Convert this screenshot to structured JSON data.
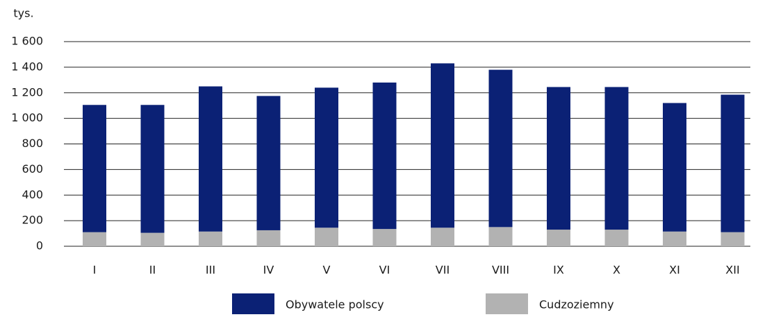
{
  "chart_data": {
    "type": "stacked_bar",
    "y_axis_label": "tys.",
    "categories": [
      "I",
      "II",
      "III",
      "IV",
      "V",
      "VI",
      "VII",
      "VIII",
      "IX",
      "X",
      "XI",
      "XII"
    ],
    "series": [
      {
        "name": "Cudzoziemny",
        "color": "#b2b2b2",
        "values": [
          110,
          105,
          115,
          125,
          145,
          135,
          145,
          150,
          130,
          130,
          115,
          110
        ]
      },
      {
        "name": "Obywatele polscy",
        "color": "#0b2175",
        "values": [
          995,
          1000,
          1135,
          1050,
          1095,
          1145,
          1285,
          1230,
          1115,
          1115,
          1005,
          1075
        ]
      }
    ],
    "ylim": [
      0,
      1600
    ],
    "yticks": [
      0,
      200,
      400,
      600,
      800,
      {
        "value": 1000,
        "label": "1 000"
      },
      {
        "value": 1200,
        "label": "1 200"
      },
      {
        "value": 1400,
        "label": "1 400"
      },
      {
        "value": 1600,
        "label": "1 600"
      }
    ],
    "grid": true
  }
}
